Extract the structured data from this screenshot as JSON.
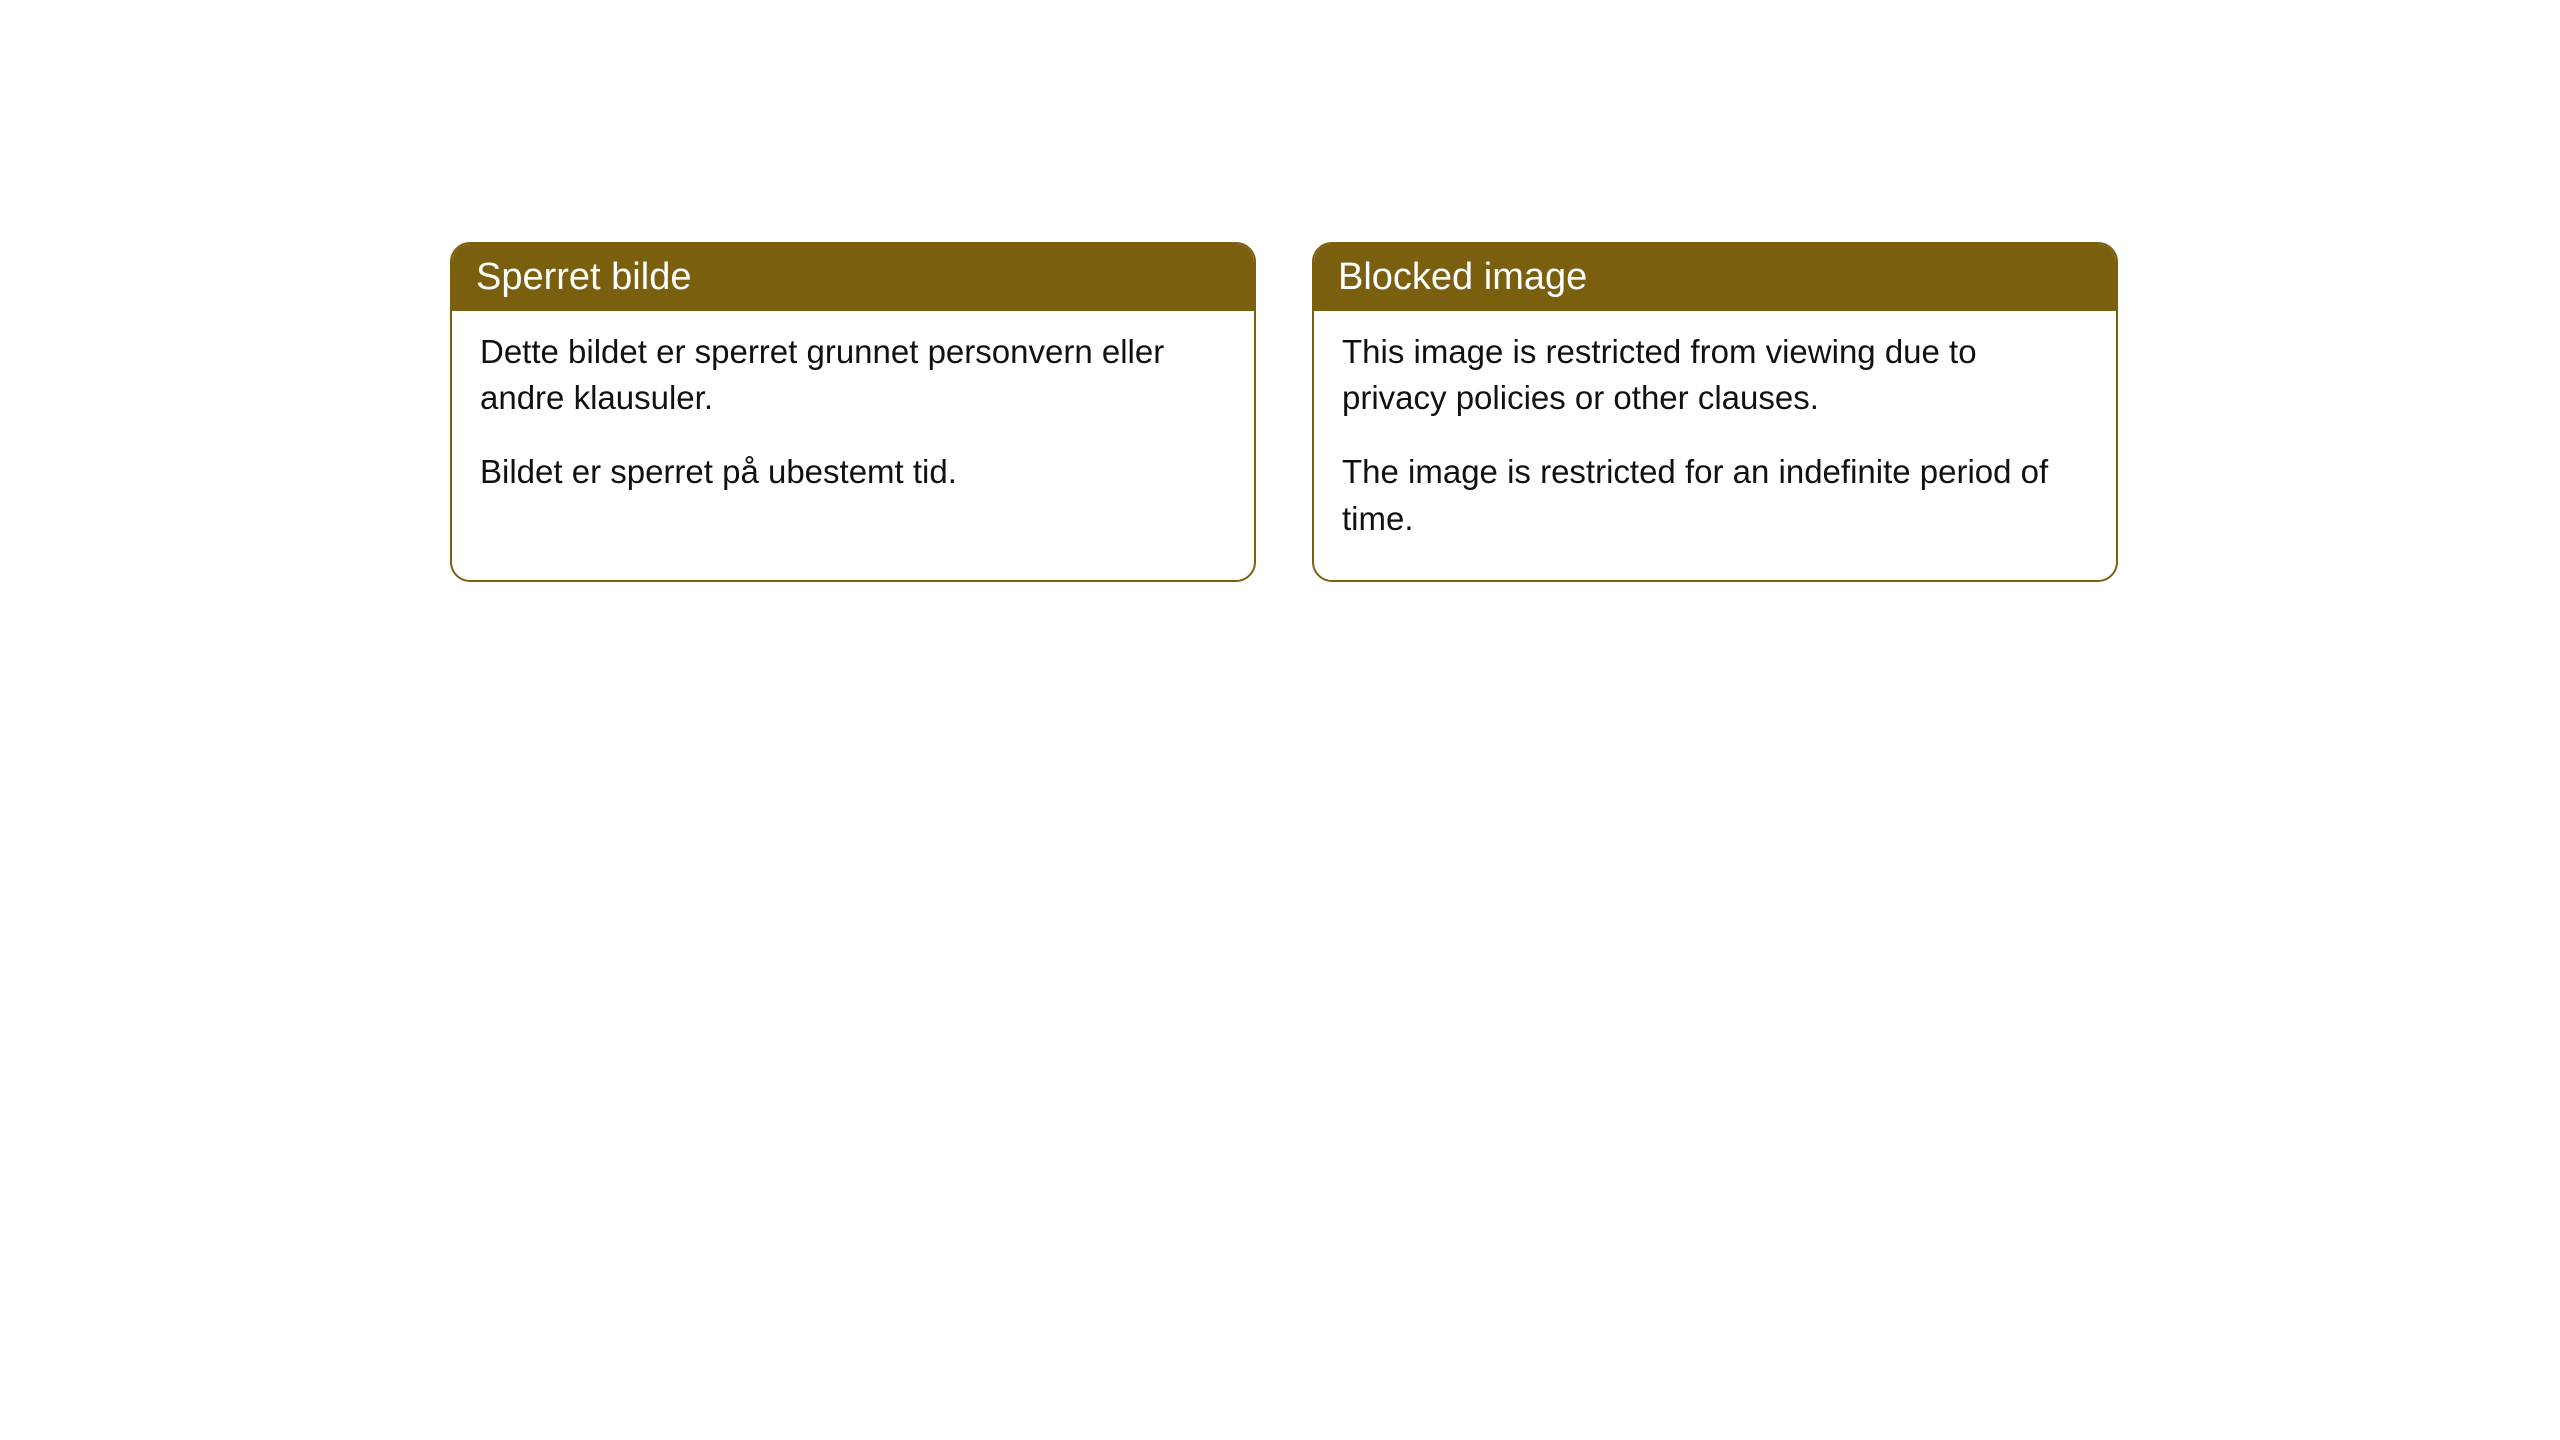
{
  "cards": [
    {
      "title": "Sperret bilde",
      "paragraph1": "Dette bildet er sperret grunnet personvern eller andre klausuler.",
      "paragraph2": "Bildet er sperret på ubestemt tid."
    },
    {
      "title": "Blocked image",
      "paragraph1": "This image is restricted from viewing due to privacy policies or other clauses.",
      "paragraph2": "The image is restricted for an indefinite period of time."
    }
  ],
  "colors": {
    "header_bg": "#7a5f0f",
    "header_text": "#ffffff",
    "border": "#7a5f0f",
    "body_text": "#111111",
    "page_bg": "#ffffff"
  }
}
